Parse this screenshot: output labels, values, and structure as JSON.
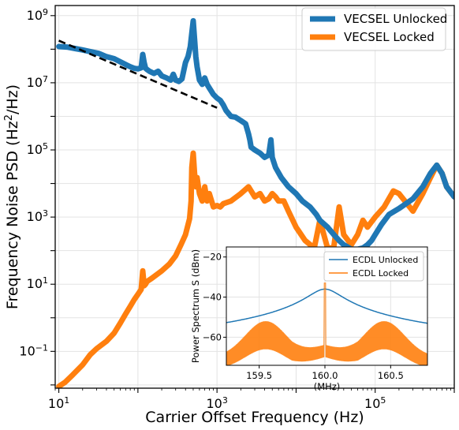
{
  "chart_data": [
    {
      "type": "line",
      "xscale": "log",
      "yscale": "log",
      "xlabel": "Carrier Offset Frequency (Hz)",
      "ylabel": "Frequency Noise PSD (Hz$^2$/Hz)",
      "ylabel_main": "Frequency Noise PSD (Hz",
      "ylabel_sup": "2",
      "ylabel_tail": "/Hz)",
      "xlim": [
        9,
        1000000
      ],
      "ylim": [
        0.008,
        2000000000
      ],
      "grid": true,
      "legend_position": "upper right",
      "xticks": [
        {
          "base": "10",
          "exp": "1",
          "value": 10
        },
        {
          "base": "10",
          "exp": "3",
          "value": 1000
        },
        {
          "base": "10",
          "exp": "5",
          "value": 100000
        }
      ],
      "yticks": [
        {
          "base": "10",
          "exp": "9",
          "value": 1000000000
        },
        {
          "base": "10",
          "exp": "7",
          "value": 10000000
        },
        {
          "base": "10",
          "exp": "5",
          "value": 100000
        },
        {
          "base": "10",
          "exp": "3",
          "value": 1000
        },
        {
          "base": "10",
          "exp": "1",
          "value": 10
        },
        {
          "base": "10",
          "exp": "−1",
          "value": 0.1
        }
      ],
      "series": [
        {
          "name": "VECSEL Unlocked",
          "color": "#1f77b4",
          "x": [
            10,
            13,
            16,
            20,
            25,
            32,
            40,
            50,
            60,
            70,
            80,
            90,
            100,
            110,
            115,
            120,
            125,
            130,
            140,
            160,
            180,
            200,
            230,
            260,
            280,
            300,
            330,
            360,
            400,
            430,
            460,
            480,
            500,
            520,
            540,
            560,
            600,
            650,
            700,
            750,
            800,
            900,
            1000,
            1100,
            1200,
            1300,
            1500,
            1700,
            2000,
            2300,
            2500,
            2600,
            2700,
            3000,
            3500,
            4000,
            4500,
            4800,
            5000,
            5500,
            6500,
            8000,
            10000,
            12000,
            15000,
            18000,
            20000,
            25000,
            30000,
            35000,
            40000,
            50000,
            60000,
            70000,
            80000,
            90000,
            100000,
            120000,
            150000,
            200000,
            300000,
            400000,
            500000,
            600000,
            700000,
            800000,
            1000000
          ],
          "y": [
            120000000,
            115000000,
            105000000,
            95000000,
            85000000,
            75000000,
            60000000,
            52000000,
            42000000,
            35000000,
            30000000,
            27000000,
            26000000,
            28000000,
            70000000,
            40000000,
            27000000,
            25000000,
            22000000,
            19000000,
            22000000,
            16000000,
            14000000,
            12000000,
            18000000,
            12000000,
            11000000,
            13000000,
            40000000,
            60000000,
            120000000,
            300000000,
            700000000,
            200000000,
            60000000,
            30000000,
            12000000,
            9000000,
            14000000,
            9000000,
            7000000,
            4500000,
            3500000,
            3000000,
            2200000,
            1500000,
            1000000,
            950000,
            750000,
            600000,
            300000,
            200000,
            120000,
            100000,
            80000,
            60000,
            70000,
            200000,
            60000,
            30000,
            15000,
            8000,
            5000,
            3000,
            2000,
            1200,
            800,
            500,
            300,
            200,
            150,
            110,
            110,
            120,
            150,
            200,
            300,
            600,
            1200,
            1800,
            3500,
            8000,
            20000,
            35000,
            20000,
            8000,
            4000
          ]
        },
        {
          "name": "VECSEL Locked",
          "color": "#ff7f0e",
          "x": [
            10,
            12,
            15,
            20,
            25,
            30,
            40,
            50,
            60,
            70,
            80,
            90,
            100,
            110,
            115,
            120,
            125,
            130,
            150,
            200,
            250,
            300,
            350,
            400,
            450,
            470,
            480,
            500,
            520,
            540,
            560,
            600,
            650,
            700,
            750,
            800,
            900,
            1000,
            1100,
            1200,
            1500,
            2000,
            2500,
            3000,
            3500,
            4000,
            4500,
            5000,
            5500,
            6000,
            7000,
            8000,
            10000,
            13000,
            17000,
            20000,
            25000,
            28000,
            30000,
            35000,
            40000,
            50000,
            60000,
            70000,
            80000,
            100000,
            130000,
            170000,
            200000,
            300000,
            400000,
            500000,
            600000,
            700000,
            800000,
            1000000
          ],
          "y": [
            0.009,
            0.012,
            0.02,
            0.04,
            0.08,
            0.12,
            0.2,
            0.35,
            0.7,
            1.3,
            2.2,
            3.5,
            5,
            7,
            25,
            9,
            10,
            12,
            15,
            25,
            40,
            70,
            150,
            300,
            900,
            3000,
            30000,
            80000,
            20000,
            8000,
            15000,
            5000,
            3000,
            8000,
            3000,
            5000,
            2000,
            2200,
            2000,
            2500,
            3000,
            5000,
            8000,
            4000,
            5000,
            3000,
            3500,
            5000,
            4000,
            3000,
            3000,
            1500,
            500,
            200,
            120,
            800,
            120,
            120,
            130,
            2000,
            300,
            150,
            300,
            800,
            500,
            1000,
            2000,
            6000,
            5000,
            1500,
            5000,
            15000,
            35000,
            20000,
            8000,
            4000
          ]
        }
      ],
      "fit_line": {
        "style": "dashed",
        "color": "#000000",
        "x": [
          10,
          1000
        ],
        "y": [
          180000000,
          1800000
        ]
      }
    },
    {
      "type": "line",
      "inset": true,
      "xlabel": "(MHz)",
      "ylabel": "Power Spectrum S (dBm)",
      "xlim": [
        159.25,
        160.78
      ],
      "ylim": [
        -74,
        -15
      ],
      "grid": true,
      "xticks": [
        "159.5",
        "160.0",
        "160.5"
      ],
      "xtick_values": [
        159.5,
        160.0,
        160.5
      ],
      "yticks": [
        "−20",
        "−40",
        "−60"
      ],
      "ytick_values": [
        -20,
        -40,
        -60
      ],
      "legend_position": "upper right",
      "series": [
        {
          "name": "ECDL Unlocked",
          "color": "#1f77b4",
          "shape": "lorentzian",
          "center": 160.0,
          "peak": -36,
          "width": 0.11,
          "floor": -72
        },
        {
          "name": "ECDL Locked",
          "color": "#ff7f0e",
          "shape": "comb",
          "center": 160.0,
          "peak": -33,
          "sidelobe_peak": -52,
          "sidelobe_offset": 0.45,
          "floor": -70
        }
      ]
    }
  ]
}
